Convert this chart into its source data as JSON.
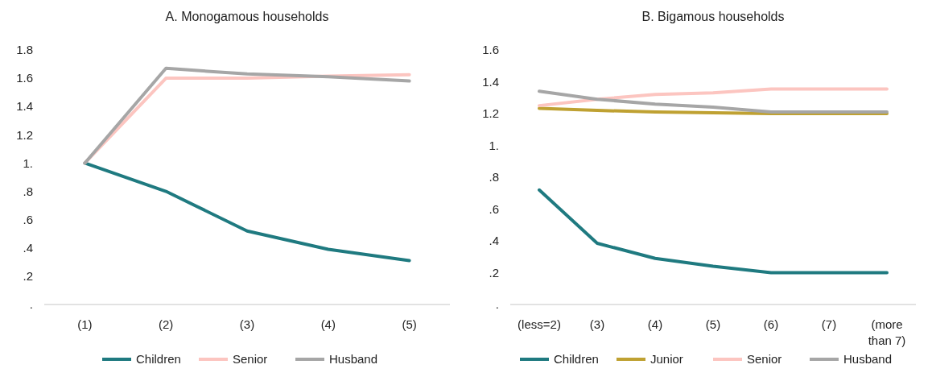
{
  "chart_data": [
    {
      "type": "line",
      "title": "A. Monogamous households",
      "categories": [
        "(1)",
        "(2)",
        "(3)",
        "(4)",
        "(5)"
      ],
      "series": [
        {
          "name": "Children",
          "color": "#1f7a80",
          "values": [
            1.0,
            0.8,
            0.52,
            0.39,
            0.31
          ]
        },
        {
          "name": "Senior",
          "color": "#fcc5c0",
          "values": [
            1.0,
            1.6,
            1.6,
            1.615,
            1.625
          ]
        },
        {
          "name": "Husband",
          "color": "#a6a6a6",
          "values": [
            1.0,
            1.67,
            1.63,
            1.61,
            1.58
          ]
        }
      ],
      "ylim": [
        0,
        1.8
      ],
      "yticks": [
        {
          "value": 0,
          "label": "."
        },
        {
          "value": 0.2,
          "label": ".2"
        },
        {
          "value": 0.4,
          "label": ".4"
        },
        {
          "value": 0.6,
          "label": ".6"
        },
        {
          "value": 0.8,
          "label": ".8"
        },
        {
          "value": 1,
          "label": "1."
        },
        1.2,
        1.4,
        1.6,
        1.8
      ],
      "grid": false,
      "legend": "bottom",
      "marker": "none",
      "line_style": "solid"
    },
    {
      "type": "line",
      "title": "B. Bigamous households",
      "categories": [
        "(less=2)",
        "(3)",
        "(4)",
        "(5)",
        "(6)",
        "(7)",
        "(more than 7)"
      ],
      "series": [
        {
          "name": "Children",
          "color": "#1f7a80",
          "values": [
            0.72,
            0.385,
            0.29,
            0.24,
            0.2,
            0.2,
            0.2
          ]
        },
        {
          "name": "Junior",
          "color": "#bfa132",
          "values": [
            1.233,
            1.22,
            1.21,
            1.205,
            1.2,
            1.2,
            1.2
          ]
        },
        {
          "name": "Senior",
          "color": "#fcc5c0",
          "values": [
            1.25,
            1.29,
            1.32,
            1.33,
            1.355,
            1.355,
            1.355
          ]
        },
        {
          "name": "Husband",
          "color": "#a6a6a6",
          "values": [
            1.34,
            1.29,
            1.26,
            1.24,
            1.21,
            1.21,
            1.21
          ]
        }
      ],
      "ylim": [
        0,
        1.6
      ],
      "yticks": [
        {
          "value": 0,
          "label": "."
        },
        {
          "value": 0.2,
          "label": ".2"
        },
        {
          "value": 0.4,
          "label": ".4"
        },
        {
          "value": 0.6,
          "label": ".6"
        },
        {
          "value": 0.8,
          "label": ".8"
        },
        {
          "value": 1,
          "label": "1."
        },
        1.2,
        1.4,
        1.6
      ],
      "grid": false,
      "legend": "bottom",
      "marker": "none",
      "line_style": "solid"
    }
  ]
}
